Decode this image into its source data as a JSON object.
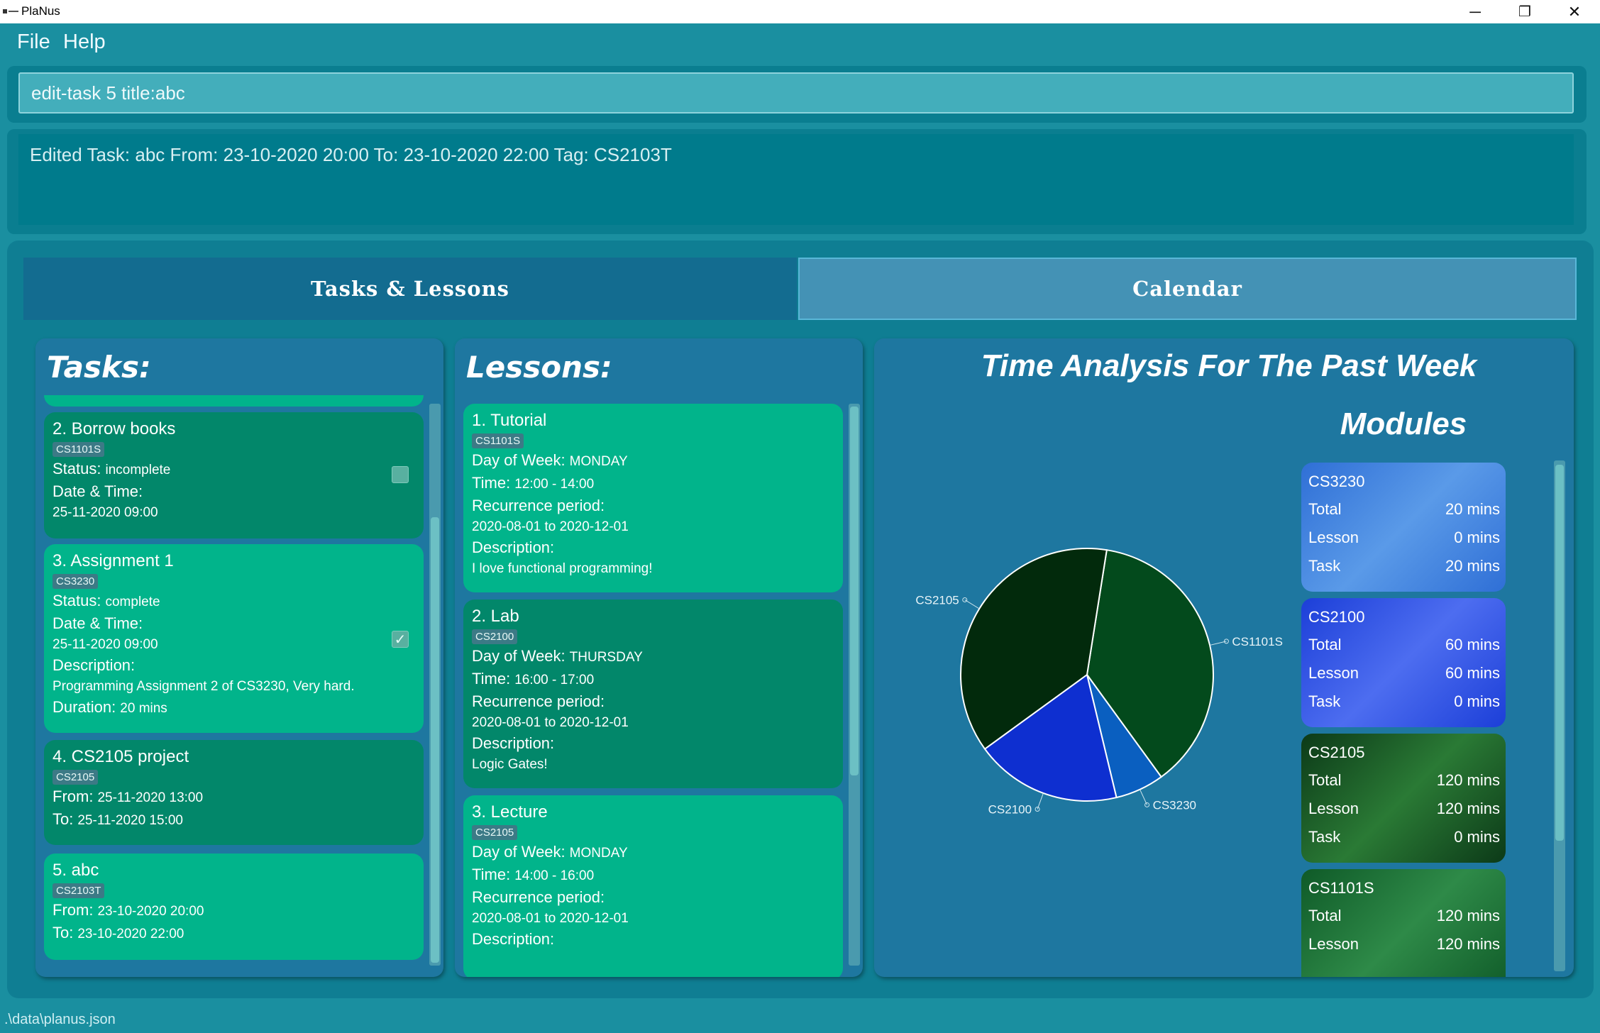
{
  "window": {
    "title": "PlaNus",
    "minimize": "─",
    "maximize": "❐",
    "close": "✕"
  },
  "menu": {
    "file": "File",
    "help": "Help"
  },
  "command": {
    "value": "edit-task 5 title:abc"
  },
  "result": {
    "text": "Edited Task: abc From: 23-10-2020 20:00 To: 23-10-2020 22:00 Tag: CS2103T"
  },
  "tabs": {
    "tasks": "Tasks & Lessons",
    "calendar": "Calendar"
  },
  "tasks": {
    "title": "Tasks:",
    "items": [
      {
        "title": "2.  Borrow books",
        "tag": "CS1101S",
        "status_label": "Status:",
        "status": "incomplete",
        "dt_label": "Date & Time:",
        "dt": "25-11-2020 09:00",
        "checked": false
      },
      {
        "title": "3.  Assignment 1",
        "tag": "CS3230",
        "status_label": "Status:",
        "status": "complete",
        "dt_label": "Date & Time:",
        "dt": "25-11-2020 09:00",
        "desc_label": "Description:",
        "desc": "Programming Assignment 2 of CS3230, Very hard.",
        "dur_label": "Duration:",
        "dur": "20 mins",
        "checked": true
      },
      {
        "title": "4.  CS2105 project",
        "tag": "CS2105",
        "from_label": "From:",
        "from": "25-11-2020 13:00",
        "to_label": "To:",
        "to": "25-11-2020 15:00"
      },
      {
        "title": "5.  abc",
        "tag": "CS2103T",
        "from_label": "From:",
        "from": "23-10-2020 20:00",
        "to_label": "To:",
        "to": "23-10-2020 22:00"
      }
    ]
  },
  "lessons": {
    "title": "Lessons:",
    "items": [
      {
        "title": "1.  Tutorial",
        "tag": "CS1101S",
        "day_label": "Day of Week:",
        "day": "MONDAY",
        "time_label": "Time:",
        "time": "12:00 - 14:00",
        "rec_label": "Recurrence period:",
        "rec": "2020-08-01 to 2020-12-01",
        "desc_label": "Description:",
        "desc": "I love functional programming!"
      },
      {
        "title": "2.  Lab",
        "tag": "CS2100",
        "day_label": "Day of Week:",
        "day": "THURSDAY",
        "time_label": "Time:",
        "time": "16:00 - 17:00",
        "rec_label": "Recurrence period:",
        "rec": "2020-08-01 to 2020-12-01",
        "desc_label": "Description:",
        "desc": "Logic Gates!"
      },
      {
        "title": "3.  Lecture",
        "tag": "CS2105",
        "day_label": "Day of Week:",
        "day": "MONDAY",
        "time_label": "Time:",
        "time": "14:00 - 16:00",
        "rec_label": "Recurrence period:",
        "rec": "2020-08-01 to 2020-12-01",
        "desc_label": "Description:"
      }
    ]
  },
  "analysis": {
    "title": "Time Analysis For The Past Week",
    "modules_title": "Modules",
    "modules": [
      {
        "code": "CS3230",
        "total_label": "Total",
        "total": "20 mins",
        "lesson_label": "Lesson",
        "lesson": "0 mins",
        "task_label": "Task",
        "task": "20 mins",
        "gradient": [
          "#2f6fd6",
          "#5a9ae8"
        ]
      },
      {
        "code": "CS2100",
        "total_label": "Total",
        "total": "60 mins",
        "lesson_label": "Lesson",
        "lesson": "60 mins",
        "task_label": "Task",
        "task": "0 mins",
        "gradient": [
          "#1c3fd8",
          "#4d6df0"
        ]
      },
      {
        "code": "CS2105",
        "total_label": "Total",
        "total": "120 mins",
        "lesson_label": "Lesson",
        "lesson": "120 mins",
        "task_label": "Task",
        "task": "0 mins",
        "gradient": [
          "#0c3a18",
          "#2a7a35"
        ]
      },
      {
        "code": "CS1101S",
        "total_label": "Total",
        "total": "120 mins",
        "lesson_label": "Lesson",
        "lesson": "120 mins",
        "gradient": [
          "#0f5a28",
          "#2e8a48"
        ]
      }
    ]
  },
  "chart_data": {
    "type": "pie",
    "title": "Time Analysis For The Past Week",
    "labels": [
      "CS1101S",
      "CS3230",
      "CS2100",
      "CS2105"
    ],
    "values": [
      120,
      20,
      60,
      120
    ],
    "colors": [
      "#034a1c",
      "#0a5fc0",
      "#0e2fd0",
      "#022a0c"
    ]
  },
  "status_bar": {
    "path": ".\\data\\planus.json"
  }
}
